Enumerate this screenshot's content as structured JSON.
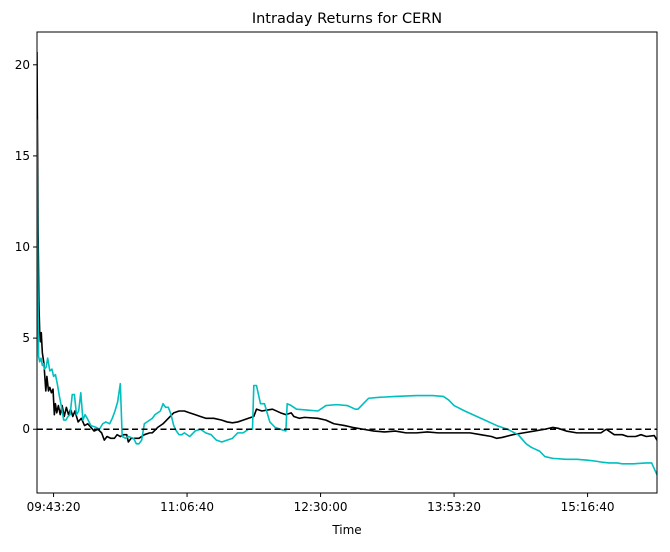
{
  "chart_data": {
    "type": "line",
    "title": "Intraday Returns for CERN",
    "xlabel": "Time",
    "ylabel": "",
    "xlim": [
      "09:33:00",
      "16:00:00"
    ],
    "ylim": [
      -3.5,
      21.8
    ],
    "x_ticks": [
      "09:43:20",
      "11:06:40",
      "12:30:00",
      "13:53:20",
      "15:16:40"
    ],
    "y_ticks": [
      0,
      5,
      10,
      15,
      20
    ],
    "grid": false,
    "legend": "none",
    "reference_line": {
      "y": 0,
      "style": "dashed",
      "color": "#000000"
    },
    "series": [
      {
        "color": "#000000",
        "points": [
          [
            "09:33:00",
            20.7
          ],
          [
            "09:33:40",
            11.0
          ],
          [
            "09:34:10",
            7.0
          ],
          [
            "09:34:40",
            5.4
          ],
          [
            "09:35:10",
            4.8
          ],
          [
            "09:35:40",
            5.3
          ],
          [
            "09:36:20",
            4.2
          ],
          [
            "09:37:20",
            3.6
          ],
          [
            "09:38:30",
            2.1
          ],
          [
            "09:39:10",
            2.9
          ],
          [
            "09:40:10",
            2.1
          ],
          [
            "09:41:00",
            2.3
          ],
          [
            "09:42:00",
            2.0
          ],
          [
            "09:43:00",
            2.2
          ],
          [
            "09:43:50",
            0.8
          ],
          [
            "09:44:30",
            1.4
          ],
          [
            "09:45:20",
            0.9
          ],
          [
            "09:46:20",
            1.3
          ],
          [
            "09:47:30",
            0.8
          ],
          [
            "09:48:40",
            1.3
          ],
          [
            "09:50:00",
            0.7
          ],
          [
            "09:51:20",
            1.2
          ],
          [
            "09:52:40",
            0.8
          ],
          [
            "09:54:00",
            1.1
          ],
          [
            "09:55:20",
            0.7
          ],
          [
            "09:56:40",
            1.0
          ],
          [
            "09:58:40",
            0.4
          ],
          [
            "10:00:40",
            0.6
          ],
          [
            "10:02:40",
            0.2
          ],
          [
            "10:04:40",
            0.3
          ],
          [
            "10:06:40",
            0.1
          ],
          [
            "10:08:40",
            -0.1
          ],
          [
            "10:11:00",
            0.0
          ],
          [
            "10:13:20",
            -0.2
          ],
          [
            "10:15:00",
            -0.6
          ],
          [
            "10:16:40",
            -0.4
          ],
          [
            "10:19:10",
            -0.5
          ],
          [
            "10:21:20",
            -0.5
          ],
          [
            "10:23:00",
            -0.3
          ],
          [
            "10:25:00",
            -0.4
          ],
          [
            "10:27:00",
            -0.3
          ],
          [
            "10:29:00",
            -0.3
          ],
          [
            "10:30:00",
            -0.7
          ],
          [
            "10:31:40",
            -0.5
          ],
          [
            "10:36:40",
            -0.5
          ],
          [
            "10:40:00",
            -0.3
          ],
          [
            "10:43:20",
            -0.2
          ],
          [
            "10:45:00",
            -0.2
          ],
          [
            "10:48:20",
            0.1
          ],
          [
            "10:51:40",
            0.3
          ],
          [
            "10:55:00",
            0.6
          ],
          [
            "10:58:20",
            0.9
          ],
          [
            "11:01:40",
            1.0
          ],
          [
            "11:05:00",
            1.0
          ],
          [
            "11:08:20",
            0.9
          ],
          [
            "11:11:40",
            0.8
          ],
          [
            "11:15:00",
            0.7
          ],
          [
            "11:18:20",
            0.6
          ],
          [
            "11:23:20",
            0.6
          ],
          [
            "11:28:20",
            0.5
          ],
          [
            "11:31:40",
            0.4
          ],
          [
            "11:35:00",
            0.35
          ],
          [
            "11:38:20",
            0.4
          ],
          [
            "11:41:40",
            0.5
          ],
          [
            "11:45:00",
            0.6
          ],
          [
            "11:48:20",
            0.7
          ],
          [
            "11:50:00",
            1.1
          ],
          [
            "11:53:20",
            1.0
          ],
          [
            "11:56:40",
            1.05
          ],
          [
            "12:00:00",
            1.1
          ],
          [
            "12:05:00",
            0.9
          ],
          [
            "12:08:20",
            0.8
          ],
          [
            "12:11:40",
            0.9
          ],
          [
            "12:13:20",
            0.7
          ],
          [
            "12:16:40",
            0.6
          ],
          [
            "12:20:00",
            0.65
          ],
          [
            "12:28:20",
            0.6
          ],
          [
            "12:33:20",
            0.5
          ],
          [
            "12:38:20",
            0.3
          ],
          [
            "12:45:00",
            0.2
          ],
          [
            "12:50:00",
            0.1
          ],
          [
            "12:56:40",
            0.0
          ],
          [
            "13:03:20",
            -0.1
          ],
          [
            "13:10:00",
            -0.15
          ],
          [
            "13:16:40",
            -0.1
          ],
          [
            "13:23:20",
            -0.2
          ],
          [
            "13:30:00",
            -0.2
          ],
          [
            "13:36:40",
            -0.15
          ],
          [
            "13:43:20",
            -0.2
          ],
          [
            "13:53:20",
            -0.2
          ],
          [
            "14:03:20",
            -0.2
          ],
          [
            "14:10:00",
            -0.3
          ],
          [
            "14:16:40",
            -0.4
          ],
          [
            "14:20:00",
            -0.5
          ],
          [
            "14:23:20",
            -0.45
          ],
          [
            "14:30:00",
            -0.3
          ],
          [
            "14:36:40",
            -0.2
          ],
          [
            "14:43:20",
            -0.1
          ],
          [
            "14:50:00",
            0.0
          ],
          [
            "14:55:00",
            0.1
          ],
          [
            "14:58:20",
            0.05
          ],
          [
            "15:03:20",
            -0.1
          ],
          [
            "15:10:00",
            -0.2
          ],
          [
            "15:16:40",
            -0.2
          ],
          [
            "15:25:00",
            -0.2
          ],
          [
            "15:28:20",
            0.0
          ],
          [
            "15:30:00",
            -0.1
          ],
          [
            "15:33:20",
            -0.3
          ],
          [
            "15:38:20",
            -0.3
          ],
          [
            "15:41:40",
            -0.4
          ],
          [
            "15:46:40",
            -0.4
          ],
          [
            "15:50:00",
            -0.3
          ],
          [
            "15:53:20",
            -0.4
          ],
          [
            "15:58:20",
            -0.35
          ],
          [
            "16:00:00",
            -0.6
          ]
        ]
      },
      {
        "color": "#00bfbf",
        "points": [
          [
            "09:33:00",
            17.0
          ],
          [
            "09:33:30",
            8.0
          ],
          [
            "09:34:00",
            4.0
          ],
          [
            "09:34:40",
            3.7
          ],
          [
            "09:35:30",
            3.9
          ],
          [
            "09:36:20",
            3.5
          ],
          [
            "09:37:00",
            3.6
          ],
          [
            "09:37:40",
            3.3
          ],
          [
            "09:38:40",
            3.4
          ],
          [
            "09:39:40",
            3.9
          ],
          [
            "09:41:00",
            3.2
          ],
          [
            "09:42:20",
            3.3
          ],
          [
            "09:43:20",
            2.9
          ],
          [
            "09:44:30",
            3.0
          ],
          [
            "09:45:40",
            2.5
          ],
          [
            "09:47:00",
            1.8
          ],
          [
            "09:48:20",
            1.2
          ],
          [
            "09:49:40",
            0.5
          ],
          [
            "09:51:00",
            0.5
          ],
          [
            "09:52:20",
            0.7
          ],
          [
            "09:53:40",
            0.8
          ],
          [
            "09:55:00",
            1.9
          ],
          [
            "09:56:20",
            1.9
          ],
          [
            "09:57:40",
            0.8
          ],
          [
            "09:59:00",
            1.0
          ],
          [
            "10:00:20",
            2.0
          ],
          [
            "10:01:40",
            0.5
          ],
          [
            "10:03:00",
            0.8
          ],
          [
            "10:04:20",
            0.6
          ],
          [
            "10:06:40",
            0.2
          ],
          [
            "10:10:00",
            0.1
          ],
          [
            "10:12:00",
            0.0
          ],
          [
            "10:14:00",
            0.3
          ],
          [
            "10:16:00",
            0.4
          ],
          [
            "10:18:20",
            0.3
          ],
          [
            "10:20:00",
            0.6
          ],
          [
            "10:21:40",
            1.0
          ],
          [
            "10:23:20",
            1.5
          ],
          [
            "10:25:00",
            2.5
          ],
          [
            "10:26:10",
            -0.4
          ],
          [
            "10:28:20",
            -0.5
          ],
          [
            "10:30:00",
            -0.4
          ],
          [
            "10:33:20",
            -0.5
          ],
          [
            "10:35:00",
            -0.8
          ],
          [
            "10:36:40",
            -0.8
          ],
          [
            "10:38:20",
            -0.6
          ],
          [
            "10:40:00",
            0.3
          ],
          [
            "10:43:20",
            0.5
          ],
          [
            "10:45:00",
            0.6
          ],
          [
            "10:46:40",
            0.8
          ],
          [
            "10:50:00",
            1.0
          ],
          [
            "10:51:40",
            1.4
          ],
          [
            "10:53:20",
            1.2
          ],
          [
            "10:55:00",
            1.2
          ],
          [
            "10:56:40",
            0.8
          ],
          [
            "10:58:20",
            0.2
          ],
          [
            "11:00:00",
            -0.1
          ],
          [
            "11:01:40",
            -0.3
          ],
          [
            "11:03:20",
            -0.3
          ],
          [
            "11:05:00",
            -0.2
          ],
          [
            "11:08:20",
            -0.4
          ],
          [
            "11:11:40",
            -0.1
          ],
          [
            "11:15:00",
            0.0
          ],
          [
            "11:18:20",
            -0.2
          ],
          [
            "11:21:40",
            -0.3
          ],
          [
            "11:25:00",
            -0.6
          ],
          [
            "11:28:20",
            -0.7
          ],
          [
            "11:31:40",
            -0.6
          ],
          [
            "11:35:00",
            -0.5
          ],
          [
            "11:38:20",
            -0.2
          ],
          [
            "11:41:40",
            -0.2
          ],
          [
            "11:45:00",
            0.0
          ],
          [
            "11:47:30",
            0.0
          ],
          [
            "11:48:20",
            2.4
          ],
          [
            "11:50:00",
            2.4
          ],
          [
            "11:52:30",
            1.4
          ],
          [
            "11:55:00",
            1.4
          ],
          [
            "11:58:20",
            0.4
          ],
          [
            "12:01:40",
            0.1
          ],
          [
            "12:05:00",
            0.0
          ],
          [
            "12:08:20",
            -0.1
          ],
          [
            "12:09:10",
            1.4
          ],
          [
            "12:11:40",
            1.3
          ],
          [
            "12:15:00",
            1.1
          ],
          [
            "12:21:40",
            1.05
          ],
          [
            "12:28:20",
            1.0
          ],
          [
            "12:33:20",
            1.3
          ],
          [
            "12:40:00",
            1.35
          ],
          [
            "12:46:40",
            1.3
          ],
          [
            "12:51:40",
            1.1
          ],
          [
            "12:53:20",
            1.1
          ],
          [
            "12:56:40",
            1.4
          ],
          [
            "13:00:00",
            1.7
          ],
          [
            "13:06:40",
            1.75
          ],
          [
            "13:16:40",
            1.8
          ],
          [
            "13:30:00",
            1.85
          ],
          [
            "13:40:00",
            1.85
          ],
          [
            "13:46:40",
            1.8
          ],
          [
            "13:50:00",
            1.6
          ],
          [
            "13:53:20",
            1.3
          ],
          [
            "14:00:00",
            1.0
          ],
          [
            "14:10:00",
            0.6
          ],
          [
            "14:20:00",
            0.2
          ],
          [
            "14:26:40",
            0.0
          ],
          [
            "14:33:20",
            -0.3
          ],
          [
            "14:38:20",
            -0.8
          ],
          [
            "14:41:40",
            -1.0
          ],
          [
            "14:46:40",
            -1.2
          ],
          [
            "14:50:00",
            -1.5
          ],
          [
            "14:55:00",
            -1.6
          ],
          [
            "15:03:20",
            -1.65
          ],
          [
            "15:10:00",
            -1.65
          ],
          [
            "15:16:40",
            -1.7
          ],
          [
            "15:21:40",
            -1.75
          ],
          [
            "15:25:00",
            -1.8
          ],
          [
            "15:30:00",
            -1.85
          ],
          [
            "15:35:00",
            -1.85
          ],
          [
            "15:38:20",
            -1.9
          ],
          [
            "15:45:00",
            -1.9
          ],
          [
            "15:53:20",
            -1.85
          ],
          [
            "15:56:40",
            -1.85
          ],
          [
            "16:00:00",
            -2.5
          ]
        ]
      }
    ]
  }
}
